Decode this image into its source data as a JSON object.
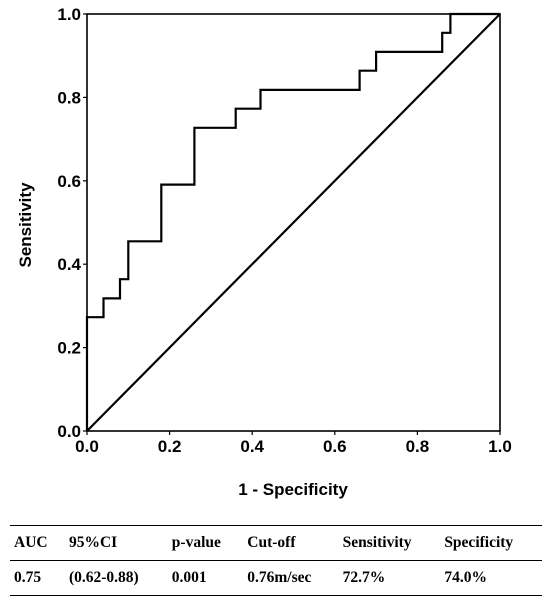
{
  "chart_data": {
    "type": "line",
    "xlabel": "1 - Specificity",
    "ylabel": "Sensitivity",
    "xlim": [
      0.0,
      1.0
    ],
    "ylim": [
      0.0,
      1.0
    ],
    "xticks": [
      "0.0",
      "0.2",
      "0.4",
      "0.6",
      "0.8",
      "1.0"
    ],
    "yticks": [
      "0.0",
      "0.2",
      "0.4",
      "0.6",
      "0.8",
      "1.0"
    ],
    "grid": false,
    "series": [
      {
        "type": "step",
        "color": "#000000",
        "x": [
          0.0,
          0.0,
          0.04,
          0.04,
          0.08,
          0.08,
          0.1,
          0.1,
          0.18,
          0.18,
          0.26,
          0.26,
          0.36,
          0.36,
          0.42,
          0.42,
          0.66,
          0.66,
          0.7,
          0.7,
          0.86,
          0.86,
          0.88,
          0.88,
          1.0
        ],
        "y": [
          0.0,
          0.273,
          0.273,
          0.318,
          0.318,
          0.364,
          0.364,
          0.455,
          0.455,
          0.591,
          0.591,
          0.727,
          0.727,
          0.773,
          0.773,
          0.818,
          0.818,
          0.864,
          0.864,
          0.909,
          0.909,
          0.955,
          0.955,
          1.0,
          1.0
        ]
      },
      {
        "type": "reference",
        "color": "#000000",
        "x": [
          0.0,
          1.0
        ],
        "y": [
          0.0,
          1.0
        ]
      }
    ]
  },
  "table": {
    "headers": [
      "AUC",
      "95%CI",
      "p-value",
      "Cut-off",
      "Sensitivity",
      "Specificity"
    ],
    "rows": [
      [
        "0.75",
        "(0.62-0.88)",
        "0.001",
        "0.76m/sec",
        "72.7%",
        "74.0%"
      ]
    ]
  }
}
